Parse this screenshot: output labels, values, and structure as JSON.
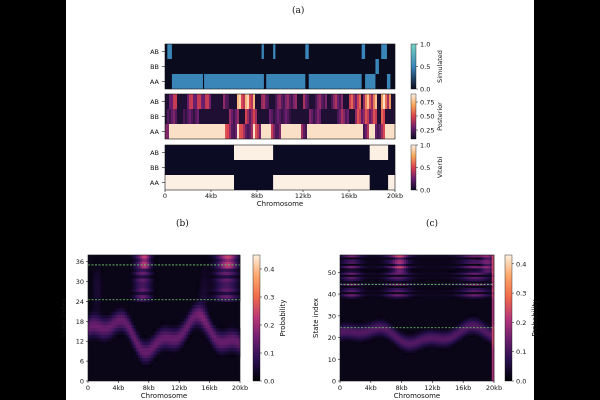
{
  "figure": {
    "panel_labels": [
      "(a)",
      "(b)",
      "(c)"
    ]
  },
  "chart_data": [
    {
      "type": "heatmap",
      "panel": "(a)",
      "subplots": [
        {
          "name": "simulated",
          "rows": [
            "AB",
            "BB",
            "AA"
          ],
          "colorbar_label": "Simulated",
          "colorbar_ticks": [
            "1.0",
            "0.5",
            "0.0"
          ],
          "colormap": [
            "#0b0b1e",
            "#3a86b8",
            "#7ad1c4"
          ],
          "state_segments": [
            {
              "row": "AB",
              "on": [
                [
                  0.2,
                  0.6
                ],
                [
                  8.4,
                  8.6
                ],
                [
                  9.4,
                  9.6
                ],
                [
                  12.2,
                  12.5
                ],
                [
                  17.1,
                  17.4
                ],
                [
                  18.8,
                  19.3
                ]
              ]
            },
            {
              "row": "BB",
              "on": [
                [
                  18.3,
                  18.6
                ]
              ]
            },
            {
              "row": "AA",
              "on": [
                [
                  0.6,
                  3.3
                ],
                [
                  3.4,
                  8.6
                ],
                [
                  8.8,
                  12.2
                ],
                [
                  12.5,
                  17.1
                ],
                [
                  17.4,
                  18.3
                ],
                [
                  19.3,
                  19.6
                ]
              ]
            }
          ]
        },
        {
          "name": "posterior",
          "rows": [
            "AB",
            "BB",
            "AA"
          ],
          "colorbar_label": "Posterior",
          "colorbar_ticks": [
            "0.75",
            "0.50",
            "0.25"
          ],
          "colormap": [
            "#0b0b24",
            "#6b1f6e",
            "#d9414f",
            "#f6a65c",
            "#fcefe3"
          ]
        },
        {
          "name": "viterbi",
          "rows": [
            "AB",
            "BB",
            "AA"
          ],
          "colorbar_label": "Viterbi",
          "colorbar_ticks": [
            "1.0",
            "0.5",
            "0.0"
          ],
          "colormap": [
            "#0b0b24",
            "#6b1f6e",
            "#d9414f",
            "#f6a65c",
            "#fcefe3"
          ],
          "state_segments": [
            {
              "row": "AB",
              "on": [
                [
                  6.0,
                  9.4
                ],
                [
                  17.8,
                  19.4
                ]
              ]
            },
            {
              "row": "AA",
              "on": [
                [
                  0.0,
                  6.0
                ],
                [
                  9.4,
                  17.8
                ],
                [
                  19.4,
                  20.0
                ]
              ]
            }
          ]
        }
      ],
      "x_tick_labels": [
        "0",
        "4kb",
        "8kb",
        "12kb",
        "16kb",
        "20kb"
      ],
      "x_ticks": [
        0,
        4,
        8,
        12,
        16,
        20
      ],
      "xlabel": "Chromosome",
      "xlim": [
        0,
        20
      ]
    },
    {
      "type": "heatmap",
      "panel": "(b)",
      "xlabel": "Chromosome",
      "ylabel": "State index",
      "x_ticks": [
        0,
        4,
        8,
        12,
        16,
        20
      ],
      "x_tick_labels": [
        "0",
        "4kb",
        "8kb",
        "12kb",
        "16kb",
        "20kb"
      ],
      "y_ticks": [
        0,
        6,
        12,
        18,
        24,
        30,
        36
      ],
      "ylim": [
        0,
        38
      ],
      "xlim": [
        0,
        20
      ],
      "dashed_lines_y": [
        24.5,
        35
      ],
      "colorbar_label": "Probability",
      "colorbar_ticks": [
        0.0,
        0.1,
        0.2,
        0.3,
        0.4
      ],
      "colorbar_max": 0.45
    },
    {
      "type": "heatmap",
      "panel": "(c)",
      "xlabel": "Chromosome",
      "ylabel": "State index",
      "x_ticks": [
        0,
        4,
        8,
        12,
        16,
        20
      ],
      "x_tick_labels": [
        "0",
        "4kb",
        "8kb",
        "12kb",
        "16kb",
        "20kb"
      ],
      "y_ticks": [
        0,
        10,
        20,
        30,
        40,
        50
      ],
      "ylim": [
        0,
        58
      ],
      "xlim": [
        0,
        20
      ],
      "dashed_lines_y": [
        24.5,
        44.5
      ],
      "colorbar_label": "Probability",
      "colorbar_ticks": [
        0.0,
        0.1,
        0.2,
        0.3,
        0.4
      ],
      "colorbar_max": 0.43
    }
  ]
}
